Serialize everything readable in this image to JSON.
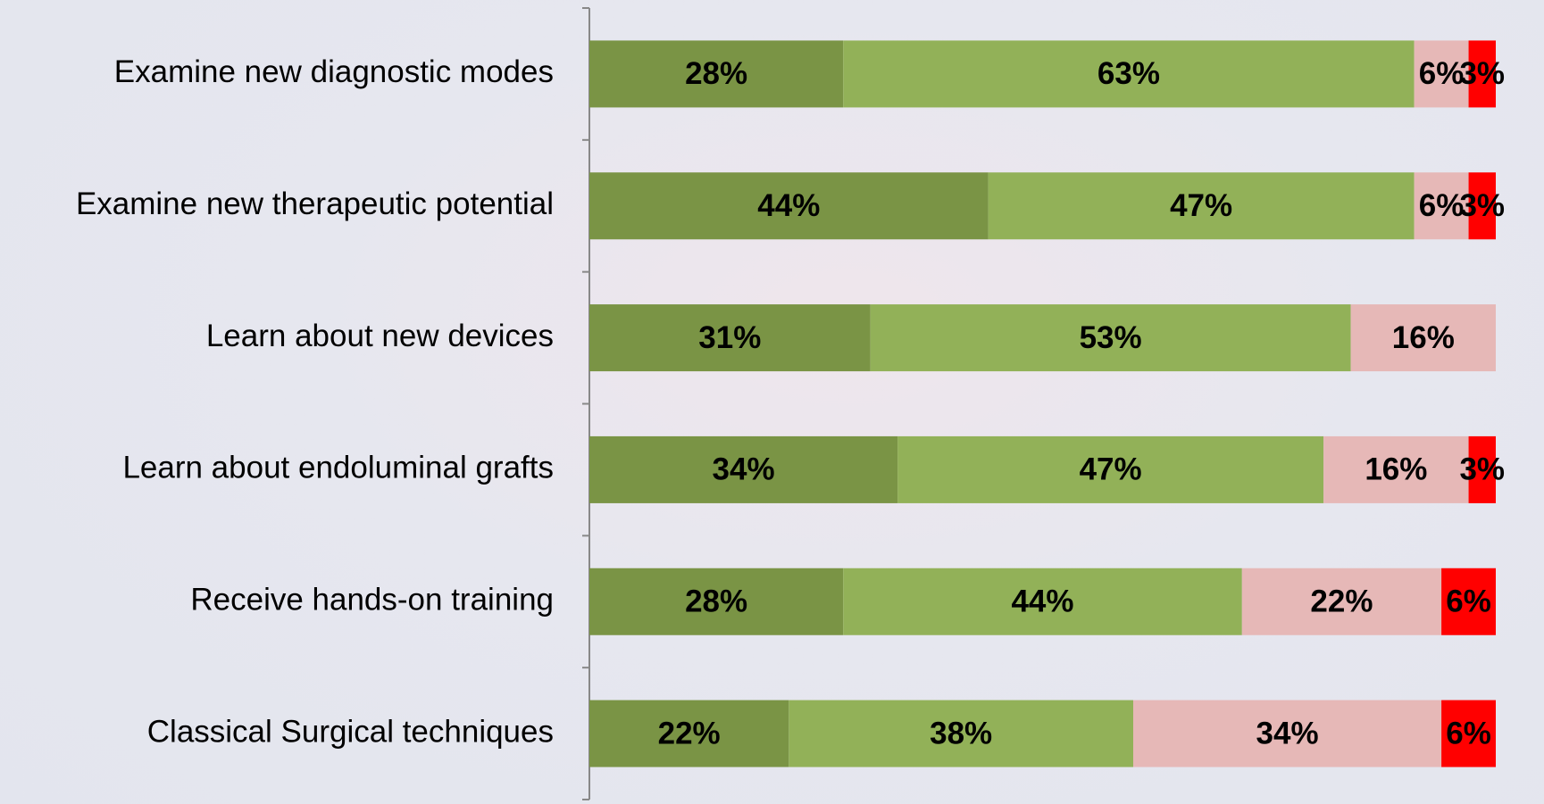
{
  "chart_data": {
    "type": "stacked-bar-horizontal",
    "categories": [
      "Examine new diagnostic modes",
      "Examine new therapeutic potential",
      "Learn about new devices",
      "Learn about endoluminal grafts",
      "Receive hands-on training",
      "Classical Surgical techniques"
    ],
    "series": [
      {
        "color": "#7a9445",
        "values": [
          28,
          44,
          31,
          34,
          28,
          22
        ],
        "value_labels": [
          "28%",
          "44%",
          "31%",
          "34%",
          "28%",
          "22%"
        ]
      },
      {
        "color": "#92b158",
        "values": [
          63,
          47,
          53,
          47,
          44,
          38
        ],
        "value_labels": [
          "63%",
          "47%",
          "53%",
          "47%",
          "44%",
          "38%"
        ]
      },
      {
        "color": "#e6b8b7",
        "values": [
          6,
          6,
          16,
          16,
          22,
          34
        ],
        "value_labels": [
          "6%",
          "6%",
          "16%",
          "16%",
          "22%",
          "34%"
        ]
      },
      {
        "color": "#ff0000",
        "values": [
          3,
          3,
          null,
          3,
          6,
          6
        ],
        "value_labels": [
          "3%",
          "3%",
          null,
          "3%",
          "6%",
          "6%"
        ]
      }
    ],
    "xlim": [
      0,
      100
    ]
  }
}
